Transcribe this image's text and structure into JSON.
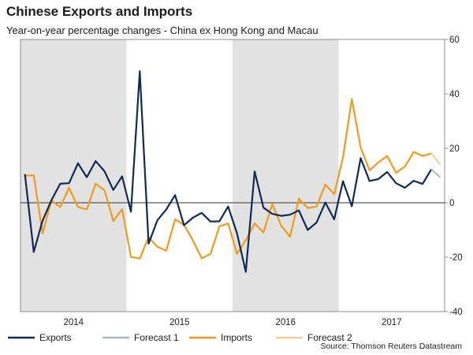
{
  "header": {
    "title": "Chinese Exports and Imports",
    "subtitle": "Year-on-year percentage changes - China ex Hong Kong and Macau"
  },
  "source": "Source: Thomson Reuters Datastream",
  "colors": {
    "exports": "#0f2a57",
    "forecast1": "#a9b8c8",
    "imports": "#f39a1e",
    "forecast2": "#f6cc91",
    "shade": "#e2e2e2",
    "zero_line": "#333333"
  },
  "chart_data": {
    "type": "line",
    "title": "Chinese Exports and Imports",
    "subtitle": "Year-on-year percentage changes - China ex Hong Kong and Macau",
    "x_categories": [
      "2014",
      "2015",
      "2016",
      "2017"
    ],
    "shaded_years": [
      "2014",
      "2016"
    ],
    "ylim": [
      -40,
      60
    ],
    "y_ticks": [
      "60",
      "40",
      "20",
      "0",
      "-20",
      "-40"
    ],
    "y_axis_side": "right",
    "legend_position": "bottom",
    "series": [
      {
        "name": "Exports",
        "start": "2014-01",
        "values": [
          10.5,
          -18.1,
          -6.6,
          0.9,
          7,
          7.2,
          14.5,
          9.4,
          15.3,
          11.6,
          4.7,
          9.7,
          -3.3,
          48.3,
          -15,
          -6.4,
          -2.5,
          2.8,
          -8.3,
          -5.5,
          -3.7,
          -6.9,
          -6.8,
          -1.4,
          -11.2,
          -25.4,
          11.5,
          -1.8,
          -4.1,
          -4.8,
          -4.4,
          -2.8,
          -10,
          -7.3,
          0.1,
          -6.1,
          7.9,
          -1.3,
          16.4,
          8,
          8.7,
          11.3,
          7.2,
          5.5,
          8.1,
          6.9,
          12.3
        ]
      },
      {
        "name": "Forecast 1",
        "start": "2017-11",
        "values": [
          12.3,
          9.4
        ]
      },
      {
        "name": "Imports",
        "start": "2014-01",
        "values": [
          10,
          10.1,
          -11.3,
          0.8,
          -1.6,
          5.5,
          -1.6,
          -2.4,
          7,
          4.6,
          -6.7,
          -2.4,
          -19.9,
          -20.5,
          -12.7,
          -16.2,
          -17.6,
          -6.1,
          -8.1,
          -13.8,
          -20.4,
          -18.8,
          -8.7,
          -7.6,
          -18.8,
          -13.8,
          -7.6,
          -10.9,
          -0.4,
          -8.4,
          -12.5,
          1.5,
          -1.9,
          -1.4,
          6.7,
          3.1,
          16.7,
          38.1,
          20.3,
          11.9,
          14.8,
          17.2,
          11,
          13.3,
          18.7,
          17.2,
          18.1
        ]
      },
      {
        "name": "Forecast 2",
        "start": "2017-11",
        "values": [
          18.1,
          14
        ]
      }
    ]
  }
}
